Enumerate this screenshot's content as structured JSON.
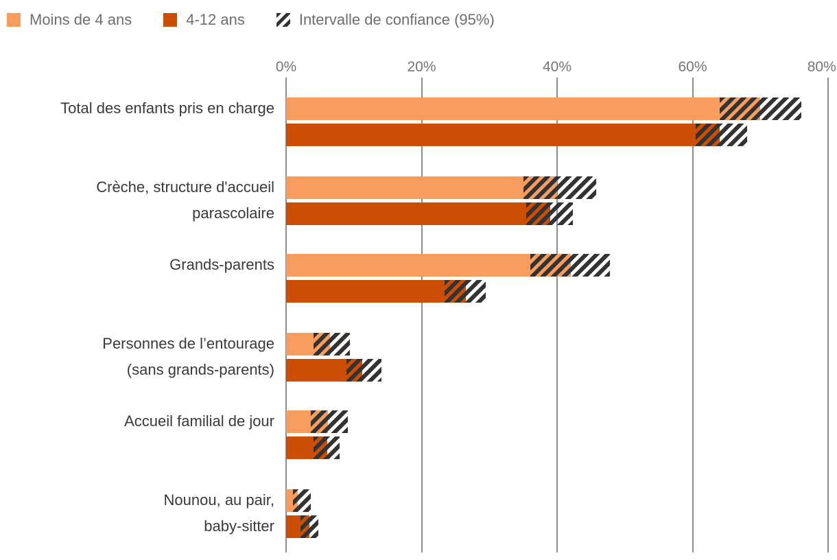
{
  "legend": {
    "items": [
      {
        "label": "Moins de 4 ans",
        "color": "#F89D5E"
      },
      {
        "label": "4-12 ans",
        "color": "#CC4E03"
      },
      {
        "label": "Intervalle de confiance (95%)",
        "pattern": "diagonal-hatch"
      }
    ]
  },
  "colors": {
    "series_light": "#F89D5E",
    "series_dark": "#CC4E03",
    "hatch": "#333333",
    "gridline": "#8c8c8c",
    "axis_text": "#757575",
    "category_text": "#3a3a3a",
    "legend_text": "#6e6e6e"
  },
  "chart_data": {
    "type": "bar",
    "orientation": "horizontal",
    "title": "",
    "xlabel": "",
    "ylabel": "",
    "xlim": [
      0,
      80
    ],
    "x_ticks": [
      "0%",
      "20%",
      "40%",
      "60%",
      "80%"
    ],
    "x_tick_values": [
      0,
      20,
      40,
      60,
      80
    ],
    "grid": "vertical",
    "legend_position": "top-left",
    "ci_legend": "Intervalle de confiance (95%)",
    "categories": [
      [
        "Total des enfants pris en charge"
      ],
      [
        "Crèche, structure d'accueil",
        "parascolaire"
      ],
      [
        "Grands-parents"
      ],
      [
        "Personnes de l’entourage",
        "(sans grands-parents)"
      ],
      [
        "Accueil familial de jour"
      ],
      [
        "Nounou, au pair,",
        "baby-sitter"
      ]
    ],
    "series": [
      {
        "name": "Moins de 4 ans",
        "color": "#F89D5E",
        "values": [
          70,
          40,
          42,
          6.5,
          6.2,
          1.7
        ],
        "ci_low": [
          64,
          35,
          36,
          4.1,
          3.6,
          1.0
        ],
        "ci_high": [
          76,
          45.8,
          47.8,
          9.4,
          9.1,
          3.6
        ]
      },
      {
        "name": "4-12 ans",
        "color": "#CC4E03",
        "values": [
          64,
          39,
          26.5,
          11.2,
          6.1,
          3.4
        ],
        "ci_low": [
          60.5,
          35.4,
          23.4,
          8.9,
          4.1,
          2.1
        ],
        "ci_high": [
          68,
          42.3,
          29.5,
          14.1,
          7.9,
          4.8
        ]
      }
    ]
  }
}
